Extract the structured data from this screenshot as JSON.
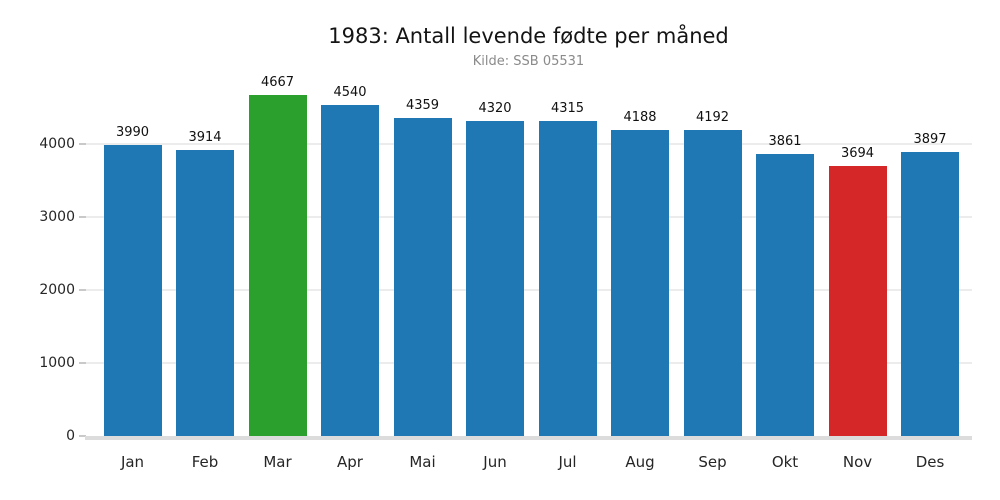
{
  "chart_data": {
    "type": "bar",
    "title": "1983: Antall levende fødte per måned",
    "subtitle": "Kilde: SSB 05531",
    "categories": [
      "Jan",
      "Feb",
      "Mar",
      "Apr",
      "Mai",
      "Jun",
      "Jul",
      "Aug",
      "Sep",
      "Okt",
      "Nov",
      "Des"
    ],
    "values": [
      3990,
      3914,
      4667,
      4540,
      4359,
      4320,
      4315,
      4188,
      4192,
      3861,
      3694,
      3897
    ],
    "bar_colors": [
      "#1f77b4",
      "#1f77b4",
      "#2ca02c",
      "#1f77b4",
      "#1f77b4",
      "#1f77b4",
      "#1f77b4",
      "#1f77b4",
      "#1f77b4",
      "#1f77b4",
      "#d62728",
      "#1f77b4"
    ],
    "default_bar_color": "#1f77b4",
    "max_highlight": {
      "category": "Mar",
      "value": 4667,
      "color": "#2ca02c"
    },
    "min_highlight": {
      "category": "Nov",
      "value": 3694,
      "color": "#d62728"
    },
    "value_labels_shown": true,
    "xlabel": "",
    "ylabel": "",
    "yticks": [
      0,
      1000,
      2000,
      3000,
      4000
    ],
    "ylim": [
      0,
      4900
    ],
    "grid": true,
    "legend": "none",
    "colors": {
      "background": "#ffffff",
      "grid": "#ececec",
      "baseline": "#dcdcdc",
      "title": "#141414",
      "subtitle": "#8a8a8a",
      "tick_text": "#262626"
    }
  }
}
